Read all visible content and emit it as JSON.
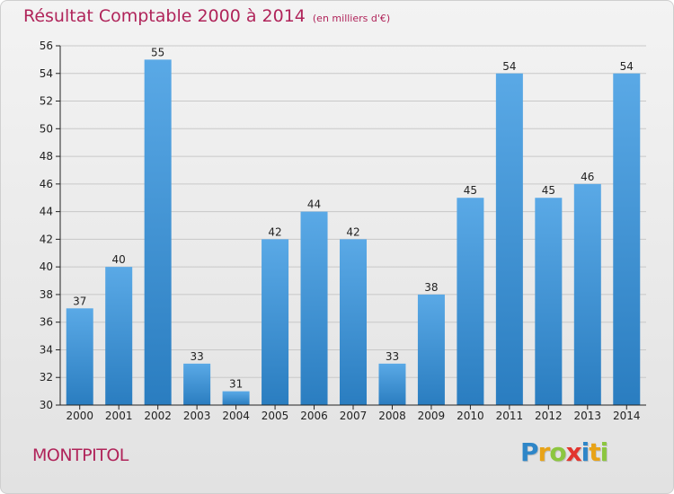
{
  "header": {
    "title": "Résultat Comptable 2000 à 2014",
    "subtitle": "(en milliers d'€)"
  },
  "footer": {
    "commune": "MONTPITOL",
    "logo": {
      "text": "Proxiti",
      "letters": [
        {
          "char": "P",
          "color": "#2e86c8"
        },
        {
          "char": "r",
          "color": "#e8a317"
        },
        {
          "char": "o",
          "color": "#8cc63f"
        },
        {
          "char": "x",
          "color": "#e2352e"
        },
        {
          "char": "i",
          "color": "#2e86c8"
        },
        {
          "char": "t",
          "color": "#e8a317"
        },
        {
          "char": "i",
          "color": "#8cc63f"
        }
      ]
    }
  },
  "colors": {
    "title": "#b0245a",
    "bar_light": "#5aa9e6",
    "bar_dark": "#2a7dc0",
    "grid": "#c8c8c8",
    "axis": "#222222"
  },
  "chart_data": {
    "type": "bar",
    "title": "Résultat Comptable 2000 à 2014",
    "subtitle": "(en milliers d'€)",
    "categories": [
      "2000",
      "2001",
      "2002",
      "2003",
      "2004",
      "2005",
      "2006",
      "2007",
      "2008",
      "2009",
      "2010",
      "2011",
      "2012",
      "2013",
      "2014"
    ],
    "values": [
      37,
      40,
      55,
      33,
      31,
      42,
      44,
      42,
      33,
      38,
      45,
      54,
      45,
      46,
      54
    ],
    "ylim": [
      30,
      56
    ],
    "yticks": [
      30,
      32,
      34,
      36,
      38,
      40,
      42,
      44,
      46,
      48,
      50,
      52,
      54,
      56
    ],
    "xlabel": "",
    "ylabel": "",
    "grid": true,
    "data_labels": true
  }
}
